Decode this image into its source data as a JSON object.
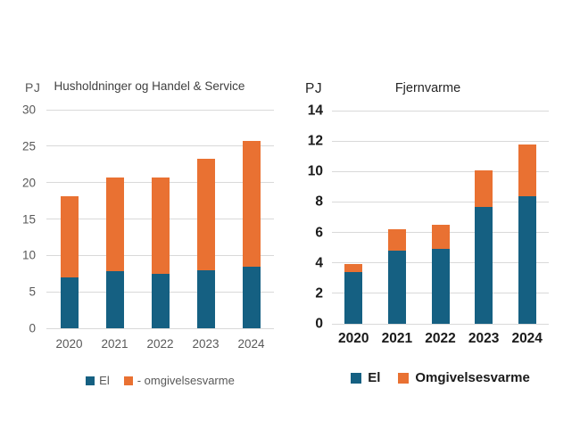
{
  "figure": {
    "background": "#FFFFFF"
  },
  "colors": {
    "el": "#156082",
    "omgivelsesvarme": "#E97132",
    "gridline": "#D9D9D9",
    "axis_text_left": "#595959",
    "axis_text_right": "#1A1A1A"
  },
  "chart_data": [
    {
      "type": "bar",
      "stacked": true,
      "title": "Husholdninger og Handel & Service",
      "ylabel": "PJ",
      "xlabel": "",
      "categories": [
        "2020",
        "2021",
        "2022",
        "2023",
        "2024"
      ],
      "series": [
        {
          "name": "El",
          "color": "#156082",
          "values": [
            7.0,
            7.8,
            7.5,
            8.0,
            8.5
          ]
        },
        {
          "name": "- omgivelsesvarme",
          "color": "#E97132",
          "values": [
            11.1,
            12.9,
            13.2,
            15.3,
            17.2
          ]
        }
      ],
      "totals": [
        18.1,
        20.7,
        20.7,
        23.3,
        25.7
      ],
      "ylim": [
        0,
        30
      ],
      "yticks": [
        0,
        5,
        10,
        15,
        20,
        25,
        30
      ],
      "grid": true,
      "legend_position": "bottom"
    },
    {
      "type": "bar",
      "stacked": true,
      "title": "Fjernvarme",
      "ylabel": "PJ",
      "xlabel": "",
      "categories": [
        "2020",
        "2021",
        "2022",
        "2023",
        "2024"
      ],
      "series": [
        {
          "name": "El",
          "color": "#156082",
          "values": [
            3.4,
            4.8,
            4.9,
            7.7,
            8.4
          ]
        },
        {
          "name": "Omgivelsesvarme",
          "color": "#E97132",
          "values": [
            0.5,
            1.4,
            1.6,
            2.35,
            3.35
          ]
        }
      ],
      "totals": [
        3.9,
        6.2,
        6.5,
        10.05,
        11.75
      ],
      "ylim": [
        0,
        14
      ],
      "yticks": [
        0,
        2,
        4,
        6,
        8,
        10,
        12,
        14
      ],
      "grid": true,
      "legend_position": "bottom"
    }
  ]
}
